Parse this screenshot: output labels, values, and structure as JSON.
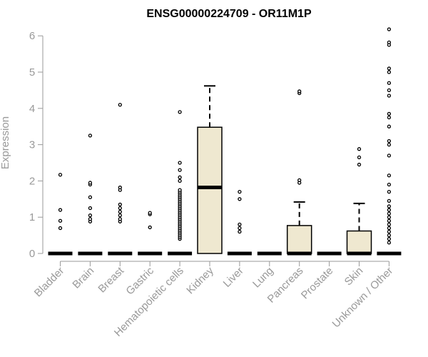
{
  "chart_data": {
    "type": "box",
    "title": "ENSG00000224709 - OR11M1P",
    "xlabel": "",
    "ylabel": "Expression",
    "ylim": [
      0,
      6.2
    ],
    "yticks": [
      0,
      1,
      2,
      3,
      4,
      5,
      6
    ],
    "box_fill": "#efe8d0",
    "categories": [
      "Bladder",
      "Brain",
      "Breast",
      "Gastric",
      "Hematopoietic cells",
      "Kidney",
      "Liver",
      "Lung",
      "Pancreas",
      "Prostate",
      "Skin",
      "Unknown / Other"
    ],
    "boxes": [
      {
        "category": "Bladder",
        "q1": 0,
        "median": 0,
        "q3": 0,
        "whisker_low": 0,
        "whisker_high": 0,
        "outliers": [
          0.7,
          0.9,
          1.2,
          2.17
        ]
      },
      {
        "category": "Brain",
        "q1": 0,
        "median": 0,
        "q3": 0,
        "whisker_low": 0,
        "whisker_high": 0,
        "outliers": [
          0.88,
          0.95,
          1.05,
          1.25,
          1.55,
          1.9,
          1.95,
          3.25
        ]
      },
      {
        "category": "Breast",
        "q1": 0,
        "median": 0,
        "q3": 0,
        "whisker_low": 0,
        "whisker_high": 0,
        "outliers": [
          0.88,
          0.95,
          1.05,
          1.15,
          1.25,
          1.35,
          1.75,
          1.82,
          4.1
        ]
      },
      {
        "category": "Gastric",
        "q1": 0,
        "median": 0,
        "q3": 0,
        "whisker_low": 0,
        "whisker_high": 0,
        "outliers": [
          0.72,
          1.08,
          1.12
        ]
      },
      {
        "category": "Hematopoietic cells",
        "q1": 0,
        "median": 0,
        "q3": 0,
        "whisker_low": 0,
        "whisker_high": 0,
        "outliers": [
          0.4,
          0.45,
          0.5,
          0.55,
          0.6,
          0.65,
          0.7,
          0.75,
          0.8,
          0.85,
          0.9,
          0.95,
          1.0,
          1.05,
          1.1,
          1.15,
          1.2,
          1.25,
          1.3,
          1.35,
          1.4,
          1.45,
          1.5,
          1.55,
          1.6,
          1.65,
          1.7,
          1.75,
          2.0,
          2.1,
          2.3,
          2.5,
          3.9
        ]
      },
      {
        "category": "Kidney",
        "q1": 0,
        "median": 1.82,
        "q3": 3.48,
        "whisker_low": 0,
        "whisker_high": 4.62,
        "outliers": []
      },
      {
        "category": "Liver",
        "q1": 0,
        "median": 0,
        "q3": 0,
        "whisker_low": 0,
        "whisker_high": 0,
        "outliers": [
          0.6,
          0.7,
          0.8,
          1.5,
          1.7
        ]
      },
      {
        "category": "Lung",
        "q1": 0,
        "median": 0,
        "q3": 0,
        "whisker_low": 0,
        "whisker_high": 0,
        "outliers": []
      },
      {
        "category": "Pancreas",
        "q1": 0,
        "median": 0,
        "q3": 0.77,
        "whisker_low": 0,
        "whisker_high": 1.42,
        "outliers": [
          1.95,
          2.02,
          4.42,
          4.47
        ]
      },
      {
        "category": "Prostate",
        "q1": 0,
        "median": 0,
        "q3": 0,
        "whisker_low": 0,
        "whisker_high": 0,
        "outliers": []
      },
      {
        "category": "Skin",
        "q1": 0,
        "median": 0,
        "q3": 0.62,
        "whisker_low": 0,
        "whisker_high": 1.38,
        "outliers": [
          2.45,
          2.65,
          2.88
        ]
      },
      {
        "category": "Unknown / Other",
        "q1": 0,
        "median": 0,
        "q3": 0,
        "whisker_low": 0,
        "whisker_high": 0,
        "outliers": [
          0.3,
          0.4,
          0.5,
          0.6,
          0.7,
          0.8,
          0.9,
          1.0,
          1.1,
          1.2,
          1.3,
          1.45,
          1.7,
          1.9,
          2.15,
          2.7,
          3.0,
          3.1,
          3.5,
          3.75,
          3.85,
          4.35,
          4.5,
          4.7,
          5.0,
          5.1,
          5.75,
          5.82,
          6.18
        ]
      }
    ]
  }
}
